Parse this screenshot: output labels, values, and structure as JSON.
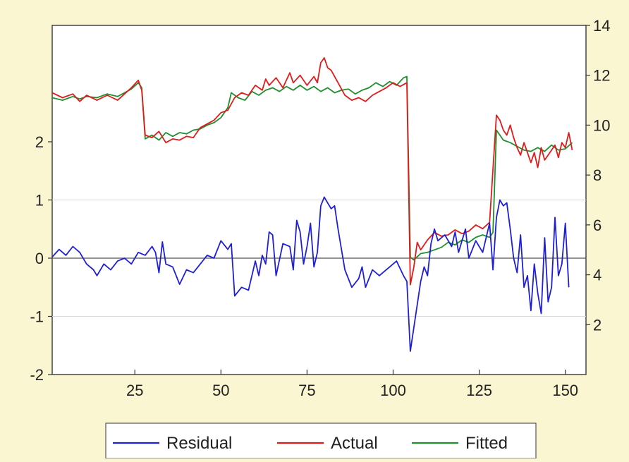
{
  "chart_data": {
    "type": "line",
    "title": "",
    "xlabel": "",
    "ylabel_left": "",
    "ylabel_right": "",
    "xlim": [
      1,
      156
    ],
    "ylim_left": [
      -2,
      4
    ],
    "ylim_right": [
      0,
      14
    ],
    "x_ticks": [
      25,
      50,
      75,
      100,
      125,
      150
    ],
    "y_left_ticks": [
      -2,
      -1,
      0,
      1,
      2
    ],
    "y_right_ticks": [
      2,
      4,
      6,
      8,
      10,
      12,
      14
    ],
    "left_gridlines": [
      -1,
      0,
      1
    ],
    "legend_placement": "bottom",
    "colors": {
      "residual": "#1f1fd6",
      "actual": "#e01b1b",
      "fitted": "#1f8f2f",
      "background": "#fbf6d2",
      "plot_area": "#ffffff"
    },
    "series": [
      {
        "key": "residual",
        "name": "Residual",
        "axis": "left",
        "points": [
          [
            1,
            0.02
          ],
          [
            3,
            0.15
          ],
          [
            5,
            0.05
          ],
          [
            7,
            0.2
          ],
          [
            9,
            0.1
          ],
          [
            11,
            -0.1
          ],
          [
            13,
            -0.2
          ],
          [
            14,
            -0.3
          ],
          [
            16,
            -0.1
          ],
          [
            18,
            -0.2
          ],
          [
            20,
            -0.05
          ],
          [
            22,
            0.0
          ],
          [
            24,
            -0.1
          ],
          [
            26,
            0.1
          ],
          [
            28,
            0.05
          ],
          [
            30,
            0.2
          ],
          [
            31,
            0.1
          ],
          [
            32,
            -0.25
          ],
          [
            33,
            0.28
          ],
          [
            34,
            -0.1
          ],
          [
            36,
            -0.15
          ],
          [
            38,
            -0.45
          ],
          [
            40,
            -0.2
          ],
          [
            42,
            -0.25
          ],
          [
            44,
            -0.1
          ],
          [
            46,
            0.05
          ],
          [
            48,
            0.0
          ],
          [
            50,
            0.3
          ],
          [
            52,
            0.15
          ],
          [
            53,
            0.25
          ],
          [
            54,
            -0.65
          ],
          [
            56,
            -0.5
          ],
          [
            58,
            -0.55
          ],
          [
            60,
            -0.05
          ],
          [
            61,
            -0.3
          ],
          [
            62,
            0.05
          ],
          [
            63,
            -0.1
          ],
          [
            64,
            0.45
          ],
          [
            65,
            0.4
          ],
          [
            66,
            -0.3
          ],
          [
            68,
            0.25
          ],
          [
            70,
            0.2
          ],
          [
            71,
            -0.2
          ],
          [
            72,
            0.65
          ],
          [
            73,
            0.45
          ],
          [
            74,
            -0.1
          ],
          [
            75,
            0.2
          ],
          [
            76,
            0.6
          ],
          [
            77,
            -0.15
          ],
          [
            78,
            0.1
          ],
          [
            79,
            0.9
          ],
          [
            80,
            1.05
          ],
          [
            82,
            0.85
          ],
          [
            83,
            0.9
          ],
          [
            84,
            0.5
          ],
          [
            86,
            -0.2
          ],
          [
            88,
            -0.5
          ],
          [
            90,
            -0.35
          ],
          [
            91,
            -0.15
          ],
          [
            92,
            -0.5
          ],
          [
            94,
            -0.2
          ],
          [
            96,
            -0.3
          ],
          [
            97,
            -0.25
          ],
          [
            99,
            -0.15
          ],
          [
            101,
            -0.05
          ],
          [
            103,
            -0.3
          ],
          [
            104,
            -0.4
          ],
          [
            105,
            -1.6
          ],
          [
            106,
            -1.2
          ],
          [
            107,
            -0.8
          ],
          [
            108,
            -0.4
          ],
          [
            109,
            -0.15
          ],
          [
            110,
            -0.3
          ],
          [
            111,
            0.25
          ],
          [
            112,
            0.5
          ],
          [
            113,
            0.3
          ],
          [
            115,
            0.4
          ],
          [
            117,
            0.2
          ],
          [
            118,
            0.45
          ],
          [
            119,
            0.1
          ],
          [
            120,
            0.3
          ],
          [
            121,
            0.5
          ],
          [
            122,
            0.0
          ],
          [
            124,
            0.3
          ],
          [
            126,
            0.1
          ],
          [
            127,
            0.35
          ],
          [
            128,
            0.6
          ],
          [
            129,
            -0.2
          ],
          [
            130,
            0.7
          ],
          [
            131,
            1.0
          ],
          [
            132,
            0.9
          ],
          [
            133,
            0.95
          ],
          [
            134,
            0.5
          ],
          [
            135,
            0.0
          ],
          [
            136,
            -0.25
          ],
          [
            137,
            0.4
          ],
          [
            138,
            -0.5
          ],
          [
            139,
            -0.3
          ],
          [
            140,
            -0.9
          ],
          [
            141,
            -0.1
          ],
          [
            142,
            -0.6
          ],
          [
            143,
            -0.95
          ],
          [
            144,
            0.35
          ],
          [
            145,
            -0.75
          ],
          [
            146,
            -0.5
          ],
          [
            147,
            0.7
          ],
          [
            148,
            -0.3
          ],
          [
            149,
            -0.1
          ],
          [
            150,
            0.6
          ],
          [
            151,
            -0.5
          ]
        ]
      },
      {
        "key": "actual",
        "name": "Actual",
        "axis": "right",
        "points": [
          [
            1,
            11.3
          ],
          [
            4,
            11.1
          ],
          [
            7,
            11.25
          ],
          [
            9,
            10.95
          ],
          [
            11,
            11.2
          ],
          [
            14,
            11.0
          ],
          [
            17,
            11.2
          ],
          [
            20,
            11.0
          ],
          [
            22,
            11.25
          ],
          [
            24,
            11.5
          ],
          [
            26,
            11.8
          ],
          [
            27,
            11.4
          ],
          [
            28,
            9.6
          ],
          [
            30,
            9.5
          ],
          [
            32,
            9.75
          ],
          [
            34,
            9.3
          ],
          [
            36,
            9.45
          ],
          [
            38,
            9.4
          ],
          [
            40,
            9.55
          ],
          [
            42,
            9.5
          ],
          [
            44,
            9.9
          ],
          [
            46,
            10.05
          ],
          [
            48,
            10.2
          ],
          [
            50,
            10.5
          ],
          [
            52,
            10.6
          ],
          [
            54,
            11.1
          ],
          [
            56,
            11.3
          ],
          [
            58,
            11.2
          ],
          [
            60,
            11.6
          ],
          [
            62,
            11.4
          ],
          [
            63,
            11.85
          ],
          [
            64,
            11.6
          ],
          [
            66,
            11.9
          ],
          [
            68,
            11.5
          ],
          [
            70,
            12.1
          ],
          [
            71,
            11.7
          ],
          [
            73,
            12.0
          ],
          [
            75,
            11.6
          ],
          [
            77,
            11.95
          ],
          [
            78,
            11.7
          ],
          [
            79,
            12.5
          ],
          [
            80,
            12.7
          ],
          [
            81,
            12.3
          ],
          [
            82,
            12.2
          ],
          [
            84,
            11.7
          ],
          [
            86,
            11.2
          ],
          [
            88,
            11.0
          ],
          [
            90,
            11.1
          ],
          [
            92,
            10.95
          ],
          [
            94,
            11.2
          ],
          [
            96,
            11.35
          ],
          [
            98,
            11.5
          ],
          [
            100,
            11.7
          ],
          [
            102,
            11.55
          ],
          [
            104,
            11.7
          ],
          [
            105,
            3.6
          ],
          [
            106,
            4.3
          ],
          [
            107,
            5.3
          ],
          [
            108,
            5.0
          ],
          [
            110,
            5.4
          ],
          [
            112,
            5.7
          ],
          [
            114,
            5.55
          ],
          [
            116,
            5.6
          ],
          [
            118,
            5.8
          ],
          [
            120,
            5.65
          ],
          [
            122,
            5.75
          ],
          [
            124,
            6.0
          ],
          [
            126,
            5.85
          ],
          [
            128,
            6.1
          ],
          [
            130,
            10.4
          ],
          [
            131,
            10.2
          ],
          [
            132,
            9.8
          ],
          [
            133,
            9.6
          ],
          [
            134,
            10.0
          ],
          [
            135,
            9.5
          ],
          [
            136,
            9.1
          ],
          [
            137,
            8.8
          ],
          [
            138,
            9.3
          ],
          [
            140,
            8.5
          ],
          [
            141,
            8.9
          ],
          [
            142,
            8.3
          ],
          [
            143,
            9.1
          ],
          [
            144,
            8.6
          ],
          [
            145,
            8.8
          ],
          [
            146,
            9.0
          ],
          [
            147,
            9.2
          ],
          [
            148,
            8.7
          ],
          [
            149,
            9.3
          ],
          [
            150,
            9.1
          ],
          [
            151,
            9.7
          ],
          [
            152,
            9.0
          ]
        ]
      },
      {
        "key": "fitted",
        "name": "Fitted",
        "axis": "right",
        "points": [
          [
            1,
            11.1
          ],
          [
            4,
            11.0
          ],
          [
            7,
            11.15
          ],
          [
            9,
            11.05
          ],
          [
            11,
            11.15
          ],
          [
            14,
            11.1
          ],
          [
            17,
            11.25
          ],
          [
            20,
            11.15
          ],
          [
            22,
            11.3
          ],
          [
            24,
            11.45
          ],
          [
            26,
            11.7
          ],
          [
            27,
            11.5
          ],
          [
            28,
            9.45
          ],
          [
            30,
            9.6
          ],
          [
            32,
            9.4
          ],
          [
            34,
            9.7
          ],
          [
            36,
            9.55
          ],
          [
            38,
            9.7
          ],
          [
            40,
            9.65
          ],
          [
            42,
            9.8
          ],
          [
            44,
            9.85
          ],
          [
            46,
            10.0
          ],
          [
            48,
            10.1
          ],
          [
            50,
            10.3
          ],
          [
            52,
            10.7
          ],
          [
            53,
            11.3
          ],
          [
            55,
            11.1
          ],
          [
            57,
            11.0
          ],
          [
            59,
            11.35
          ],
          [
            61,
            11.2
          ],
          [
            63,
            11.4
          ],
          [
            65,
            11.5
          ],
          [
            67,
            11.35
          ],
          [
            69,
            11.55
          ],
          [
            71,
            11.4
          ],
          [
            73,
            11.6
          ],
          [
            75,
            11.4
          ],
          [
            77,
            11.55
          ],
          [
            79,
            11.35
          ],
          [
            81,
            11.5
          ],
          [
            83,
            11.3
          ],
          [
            85,
            11.4
          ],
          [
            87,
            11.45
          ],
          [
            89,
            11.25
          ],
          [
            91,
            11.4
          ],
          [
            93,
            11.5
          ],
          [
            95,
            11.7
          ],
          [
            97,
            11.55
          ],
          [
            99,
            11.75
          ],
          [
            101,
            11.6
          ],
          [
            103,
            11.9
          ],
          [
            104,
            11.95
          ],
          [
            105,
            4.7
          ],
          [
            106,
            4.6
          ],
          [
            108,
            4.85
          ],
          [
            110,
            4.9
          ],
          [
            112,
            5.0
          ],
          [
            114,
            5.1
          ],
          [
            116,
            5.3
          ],
          [
            118,
            5.2
          ],
          [
            120,
            5.4
          ],
          [
            122,
            5.3
          ],
          [
            124,
            5.5
          ],
          [
            126,
            5.6
          ],
          [
            128,
            5.5
          ],
          [
            129,
            5.7
          ],
          [
            130,
            9.8
          ],
          [
            132,
            9.4
          ],
          [
            134,
            9.3
          ],
          [
            136,
            9.15
          ],
          [
            138,
            9.0
          ],
          [
            140,
            8.95
          ],
          [
            142,
            9.1
          ],
          [
            144,
            8.95
          ],
          [
            146,
            9.2
          ],
          [
            148,
            9.0
          ],
          [
            150,
            9.05
          ],
          [
            152,
            9.3
          ]
        ]
      }
    ]
  }
}
